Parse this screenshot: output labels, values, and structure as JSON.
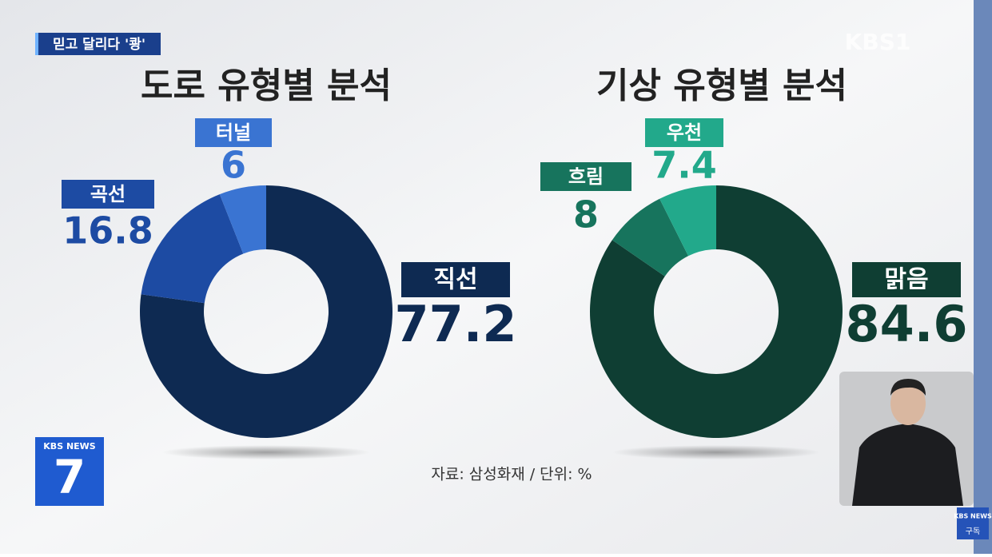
{
  "header": {
    "tag": "믿고 달리다 '쾅'",
    "logo": "KBS1"
  },
  "chart_data": [
    {
      "type": "donut",
      "title": "도로 유형별 분석",
      "categories": [
        "직선",
        "곡선",
        "터널"
      ],
      "values": [
        77.2,
        16.8,
        6
      ],
      "colors": [
        "#0e2a52",
        "#1d4ba3",
        "#3a74d2"
      ]
    },
    {
      "type": "donut",
      "title": "기상 유형별 분석",
      "categories": [
        "맑음",
        "흐림",
        "우천"
      ],
      "values": [
        84.6,
        8,
        7.4
      ],
      "colors": [
        "#0f3e33",
        "#17745d",
        "#22a98b"
      ]
    }
  ],
  "source": "자료: 삼성화재 / 단위: %",
  "news_badge": {
    "brand": "KBS NEWS",
    "number": "7"
  },
  "subscribe": {
    "brand": "KBS NEWS",
    "label": "구독"
  }
}
